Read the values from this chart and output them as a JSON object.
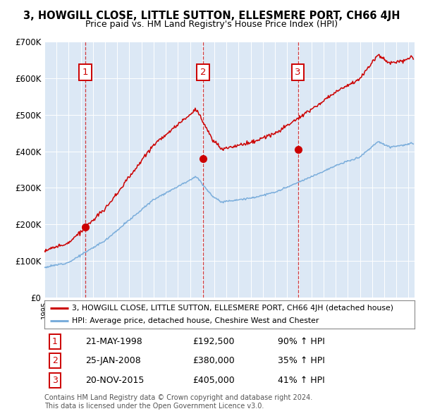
{
  "title": "3, HOWGILL CLOSE, LITTLE SUTTON, ELLESMERE PORT, CH66 4JH",
  "subtitle": "Price paid vs. HM Land Registry's House Price Index (HPI)",
  "property_label": "3, HOWGILL CLOSE, LITTLE SUTTON, ELLESMERE PORT, CH66 4JH (detached house)",
  "hpi_label": "HPI: Average price, detached house, Cheshire West and Chester",
  "transactions": [
    {
      "num": 1,
      "date": "21-MAY-1998",
      "price": 192500,
      "year": 1998.38,
      "pct": "90% ↑ HPI"
    },
    {
      "num": 2,
      "date": "25-JAN-2008",
      "price": 380000,
      "year": 2008.07,
      "pct": "35% ↑ HPI"
    },
    {
      "num": 3,
      "date": "20-NOV-2015",
      "price": 405000,
      "year": 2015.89,
      "pct": "41% ↑ HPI"
    }
  ],
  "footer": "Contains HM Land Registry data © Crown copyright and database right 2024.\nThis data is licensed under the Open Government Licence v3.0.",
  "plot_bg": "#dce8f5",
  "red_color": "#cc0000",
  "blue_color": "#7aaddb",
  "ylim": [
    0,
    700000
  ],
  "xlim_start": 1995.0,
  "xlim_end": 2025.5
}
